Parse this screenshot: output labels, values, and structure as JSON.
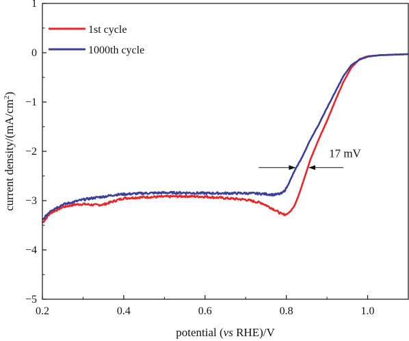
{
  "chart_data": {
    "type": "line",
    "xlabel_parts": [
      "potential (",
      "vs",
      " RHE)/V"
    ],
    "ylabel_parts": [
      "current density/(mA/cm",
      "2",
      ")"
    ],
    "xlim": [
      0.2,
      1.1
    ],
    "ylim": [
      -5,
      1
    ],
    "xticks": [
      0.2,
      0.4,
      0.6,
      0.8,
      1.0
    ],
    "xtick_labels": [
      "0.2",
      "0.4",
      "0.6",
      "0.8",
      "1.0"
    ],
    "yticks": [
      1,
      0,
      -1,
      -2,
      -3,
      -4,
      -5
    ],
    "ytick_labels": [
      "1",
      "0",
      "−1",
      "−2",
      "−3",
      "−4",
      "−5"
    ],
    "grid": false,
    "legend_position": "top-left",
    "series": [
      {
        "name": "1st cycle",
        "color": "#e8262a",
        "x": [
          0.2,
          0.22,
          0.25,
          0.28,
          0.3,
          0.33,
          0.35,
          0.38,
          0.4,
          0.45,
          0.5,
          0.55,
          0.6,
          0.65,
          0.7,
          0.74,
          0.77,
          0.79,
          0.8,
          0.81,
          0.82,
          0.83,
          0.84,
          0.85,
          0.86,
          0.87,
          0.88,
          0.9,
          0.92,
          0.94,
          0.96,
          0.98,
          1.0,
          1.03,
          1.06,
          1.1
        ],
        "y": [
          -3.45,
          -3.25,
          -3.13,
          -3.08,
          -3.07,
          -3.09,
          -3.08,
          -3.0,
          -2.95,
          -2.93,
          -2.92,
          -2.91,
          -2.92,
          -2.95,
          -2.98,
          -3.05,
          -3.18,
          -3.28,
          -3.28,
          -3.22,
          -3.1,
          -2.9,
          -2.65,
          -2.4,
          -2.15,
          -1.95,
          -1.75,
          -1.38,
          -0.98,
          -0.6,
          -0.3,
          -0.13,
          -0.07,
          -0.05,
          -0.04,
          -0.03
        ]
      },
      {
        "name": "1000th cycle",
        "color": "#3a3f98",
        "x": [
          0.2,
          0.22,
          0.25,
          0.28,
          0.3,
          0.33,
          0.35,
          0.38,
          0.4,
          0.45,
          0.5,
          0.55,
          0.6,
          0.65,
          0.7,
          0.74,
          0.77,
          0.78,
          0.79,
          0.8,
          0.81,
          0.82,
          0.83,
          0.84,
          0.85,
          0.86,
          0.88,
          0.9,
          0.92,
          0.94,
          0.96,
          0.98,
          1.0,
          1.03,
          1.06,
          1.1
        ],
        "y": [
          -3.4,
          -3.2,
          -3.08,
          -3.02,
          -2.98,
          -2.94,
          -2.92,
          -2.88,
          -2.87,
          -2.85,
          -2.84,
          -2.84,
          -2.85,
          -2.85,
          -2.85,
          -2.86,
          -2.88,
          -2.87,
          -2.85,
          -2.75,
          -2.58,
          -2.4,
          -2.25,
          -2.1,
          -1.92,
          -1.75,
          -1.45,
          -1.12,
          -0.8,
          -0.48,
          -0.25,
          -0.14,
          -0.08,
          -0.05,
          -0.04,
          -0.03
        ]
      }
    ],
    "annotations": [
      {
        "text": "17 mV",
        "x": 0.905,
        "y": -2.12
      }
    ]
  }
}
